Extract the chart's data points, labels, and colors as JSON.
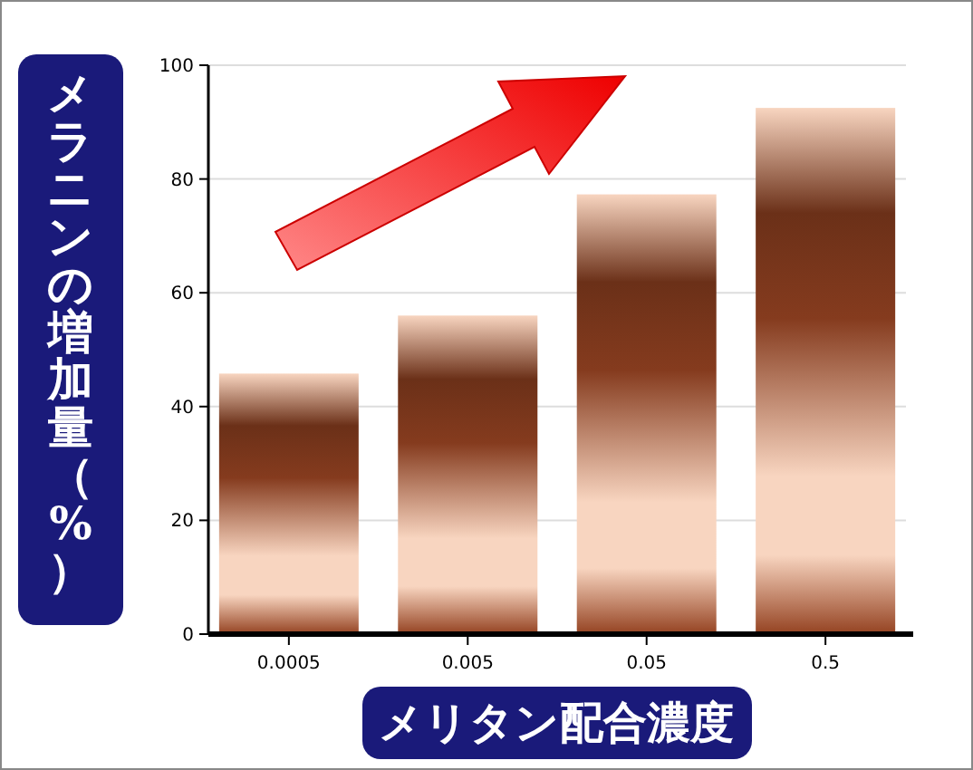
{
  "chart_data": {
    "type": "bar",
    "xlabel": "メリタン配合濃度",
    "ylabel": "メラニンの増加量（%）",
    "categories": [
      "0.0005",
      "0.005",
      "0.05",
      "0.5"
    ],
    "values": [
      45.8,
      56,
      77.3,
      92.5
    ],
    "color": "#6b3018",
    "ylim": [
      0,
      100
    ],
    "yticks": [
      0,
      20,
      40,
      60,
      80,
      100
    ],
    "grid": "y"
  }
}
